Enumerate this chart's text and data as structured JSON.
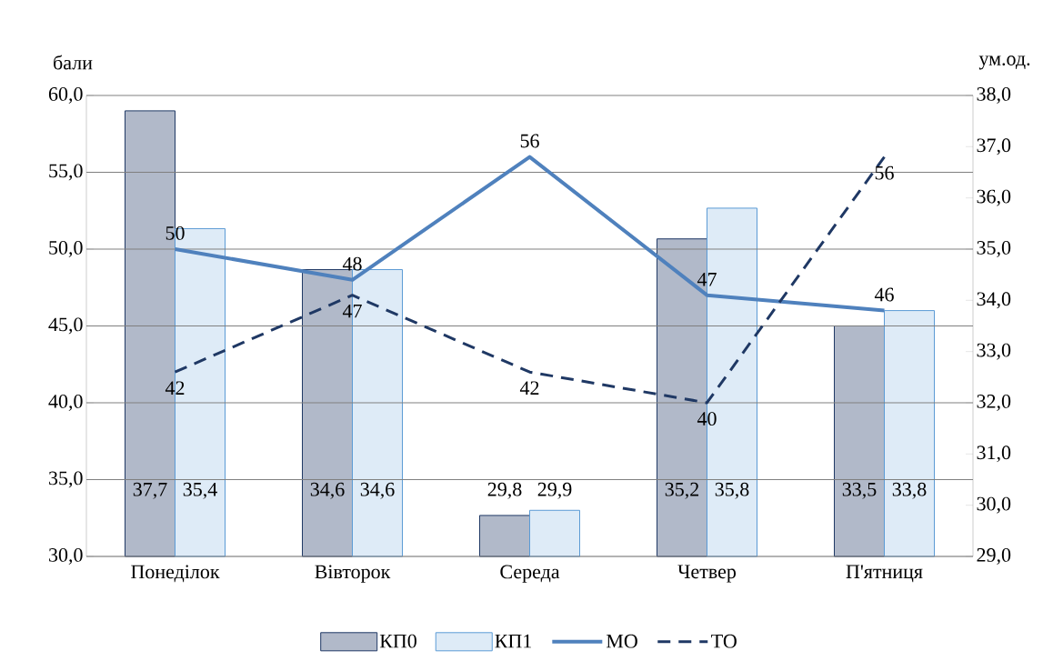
{
  "chart_data": {
    "type": "bar",
    "ylabel": "бали",
    "y2label": "ум.од.",
    "categories": [
      "Понеділок",
      "Вівторок",
      "Середа",
      "Четвер",
      "П'ятниця"
    ],
    "series": [
      {
        "name": "КП0",
        "axis": "y2",
        "color": "#1f3864",
        "values": [
          37.7,
          34.6,
          29.8,
          35.2,
          33.5
        ]
      },
      {
        "name": "КП1",
        "axis": "y2",
        "color": "#5b9bd5",
        "values": [
          35.4,
          34.6,
          29.9,
          35.8,
          33.8
        ]
      },
      {
        "name": "МО",
        "type": "line",
        "color": "#4f81bd",
        "line_style": "solid",
        "values": [
          50,
          48,
          56,
          47,
          46
        ]
      },
      {
        "name": "ТО",
        "type": "line",
        "color": "#1f3864",
        "line_style": "dashed",
        "values": [
          42,
          47,
          42,
          40,
          56
        ]
      }
    ],
    "ylim": [
      30,
      60
    ],
    "yticks": [
      {
        "value": 30,
        "label": "30,0"
      },
      {
        "value": 35,
        "label": "35,0"
      },
      {
        "value": 40,
        "label": "40,0"
      },
      {
        "value": 45,
        "label": "45,0"
      },
      {
        "value": 50,
        "label": "50,0"
      },
      {
        "value": 55,
        "label": "55,0"
      },
      {
        "value": 60,
        "label": "60,0"
      }
    ],
    "y2lim": [
      29,
      38
    ],
    "y2ticks": [
      {
        "value": 29,
        "label": "29,0"
      },
      {
        "value": 30,
        "label": "30,0"
      },
      {
        "value": 31,
        "label": "31,0"
      },
      {
        "value": 32,
        "label": "32,0"
      },
      {
        "value": 33,
        "label": "33,0"
      },
      {
        "value": 34,
        "label": "34,0"
      },
      {
        "value": 35,
        "label": "35,0"
      },
      {
        "value": 36,
        "label": "36,0"
      },
      {
        "value": 37,
        "label": "37,0"
      },
      {
        "value": 38,
        "label": "38,0"
      }
    ],
    "value_labels": [
      [
        "37,7",
        "34,6",
        "29,8",
        "35,2",
        "33,5"
      ],
      [
        "35,4",
        "34,6",
        "29,9",
        "35,8",
        "33,8"
      ],
      [
        "50",
        "48",
        "56",
        "47",
        "46"
      ],
      [
        "42",
        "47",
        "42",
        "40",
        "56"
      ]
    ],
    "grid": "y",
    "legend": "bottom",
    "marker": "none"
  }
}
